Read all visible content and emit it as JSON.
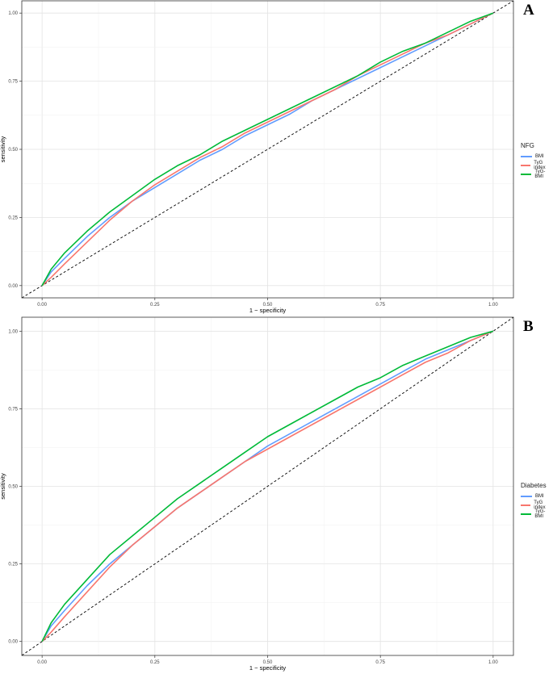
{
  "panels": [
    {
      "letter": "A",
      "legend_title": "NFG",
      "legend": [
        {
          "label": "BMI",
          "color": "#619CFF"
        },
        {
          "label": "TyG index",
          "color": "#F8766D"
        },
        {
          "label": "TyG-BMI",
          "color": "#00BA38"
        }
      ]
    },
    {
      "letter": "B",
      "legend_title": "Diabetes",
      "legend": [
        {
          "label": "BMI",
          "color": "#619CFF"
        },
        {
          "label": "TyG index",
          "color": "#F8766D"
        },
        {
          "label": "TyG-BMI",
          "color": "#00BA38"
        }
      ]
    }
  ],
  "chart_data": [
    {
      "type": "line",
      "xlabel": "1 − specificity",
      "ylabel": "sensitivity",
      "xlim": [
        0,
        1
      ],
      "ylim": [
        0,
        1
      ],
      "x_ticks": [
        "0.00",
        "0.25",
        "0.50",
        "0.75",
        "1.00"
      ],
      "y_ticks": [
        "0.00",
        "0.25",
        "0.50",
        "0.75",
        "1.00"
      ],
      "grid": true,
      "legend_position": "right",
      "reference_line": "diagonal",
      "series": [
        {
          "name": "BMI",
          "color": "#619CFF",
          "x": [
            0,
            0.02,
            0.05,
            0.1,
            0.15,
            0.2,
            0.25,
            0.3,
            0.35,
            0.4,
            0.45,
            0.5,
            0.55,
            0.6,
            0.65,
            0.7,
            0.75,
            0.8,
            0.85,
            0.9,
            0.95,
            1.0
          ],
          "y": [
            0,
            0.05,
            0.1,
            0.18,
            0.25,
            0.31,
            0.36,
            0.41,
            0.46,
            0.5,
            0.55,
            0.59,
            0.63,
            0.68,
            0.72,
            0.76,
            0.8,
            0.84,
            0.88,
            0.92,
            0.96,
            1.0
          ]
        },
        {
          "name": "TyG index",
          "color": "#F8766D",
          "x": [
            0,
            0.02,
            0.05,
            0.1,
            0.15,
            0.2,
            0.25,
            0.3,
            0.35,
            0.4,
            0.45,
            0.5,
            0.55,
            0.6,
            0.65,
            0.7,
            0.75,
            0.8,
            0.85,
            0.9,
            0.95,
            1.0
          ],
          "y": [
            0,
            0.03,
            0.08,
            0.16,
            0.24,
            0.31,
            0.37,
            0.42,
            0.47,
            0.51,
            0.56,
            0.6,
            0.64,
            0.68,
            0.72,
            0.77,
            0.81,
            0.85,
            0.89,
            0.92,
            0.96,
            1.0
          ]
        },
        {
          "name": "TyG-BMI",
          "color": "#00BA38",
          "x": [
            0,
            0.02,
            0.05,
            0.1,
            0.15,
            0.2,
            0.25,
            0.3,
            0.35,
            0.4,
            0.45,
            0.5,
            0.55,
            0.6,
            0.65,
            0.7,
            0.75,
            0.8,
            0.85,
            0.9,
            0.95,
            1.0
          ],
          "y": [
            0,
            0.06,
            0.12,
            0.2,
            0.27,
            0.33,
            0.39,
            0.44,
            0.48,
            0.53,
            0.57,
            0.61,
            0.65,
            0.69,
            0.73,
            0.77,
            0.82,
            0.86,
            0.89,
            0.93,
            0.97,
            1.0
          ]
        }
      ]
    },
    {
      "type": "line",
      "xlabel": "1 − specificity",
      "ylabel": "sensitivity",
      "xlim": [
        0,
        1
      ],
      "ylim": [
        0,
        1
      ],
      "x_ticks": [
        "0.00",
        "0.25",
        "0.50",
        "0.75",
        "1.00"
      ],
      "y_ticks": [
        "0.00",
        "0.25",
        "0.50",
        "0.75",
        "1.00"
      ],
      "grid": true,
      "legend_position": "right",
      "reference_line": "diagonal",
      "series": [
        {
          "name": "BMI",
          "color": "#619CFF",
          "x": [
            0,
            0.02,
            0.05,
            0.1,
            0.15,
            0.2,
            0.25,
            0.3,
            0.35,
            0.4,
            0.45,
            0.5,
            0.55,
            0.6,
            0.65,
            0.7,
            0.75,
            0.8,
            0.85,
            0.9,
            0.95,
            1.0
          ],
          "y": [
            0,
            0.05,
            0.1,
            0.18,
            0.25,
            0.31,
            0.37,
            0.43,
            0.48,
            0.53,
            0.58,
            0.63,
            0.67,
            0.71,
            0.75,
            0.79,
            0.83,
            0.87,
            0.91,
            0.94,
            0.97,
            1.0
          ]
        },
        {
          "name": "TyG index",
          "color": "#F8766D",
          "x": [
            0,
            0.02,
            0.05,
            0.1,
            0.15,
            0.2,
            0.25,
            0.3,
            0.35,
            0.4,
            0.45,
            0.5,
            0.55,
            0.6,
            0.65,
            0.7,
            0.75,
            0.8,
            0.85,
            0.9,
            0.95,
            1.0
          ],
          "y": [
            0,
            0.03,
            0.08,
            0.16,
            0.24,
            0.31,
            0.37,
            0.43,
            0.48,
            0.53,
            0.58,
            0.62,
            0.66,
            0.7,
            0.74,
            0.78,
            0.82,
            0.86,
            0.9,
            0.93,
            0.97,
            1.0
          ]
        },
        {
          "name": "TyG-BMI",
          "color": "#00BA38",
          "x": [
            0,
            0.02,
            0.05,
            0.1,
            0.15,
            0.2,
            0.25,
            0.3,
            0.35,
            0.4,
            0.45,
            0.5,
            0.55,
            0.6,
            0.65,
            0.7,
            0.75,
            0.8,
            0.85,
            0.9,
            0.95,
            1.0
          ],
          "y": [
            0,
            0.06,
            0.12,
            0.2,
            0.28,
            0.34,
            0.4,
            0.46,
            0.51,
            0.56,
            0.61,
            0.66,
            0.7,
            0.74,
            0.78,
            0.82,
            0.85,
            0.89,
            0.92,
            0.95,
            0.98,
            1.0
          ]
        }
      ]
    }
  ]
}
